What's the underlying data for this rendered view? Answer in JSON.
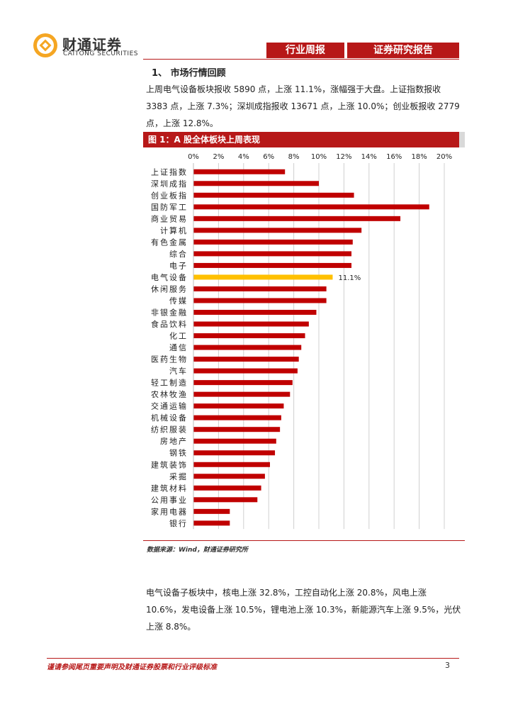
{
  "header": {
    "logo_cn": "财通证券",
    "logo_en": "CAITONG SECURITIES",
    "tab_weekly": "行业周报",
    "tab_report": "证券研究报告"
  },
  "section": {
    "title": "1、 市场行情回顾",
    "paragraph1": "上周电气设备板块报收 5890 点，上涨 11.1%，涨幅强于大盘。上证指数报收 3383 点，上涨 7.3%；深圳成指报收 13671 点，上涨 10.0%；创业板报收 2779 点，上涨 12.8%。",
    "paragraph2": "电气设备子板块中，核电上涨 32.8%，工控自动化上涨 20.8%，风电上涨 10.6%，发电设备上涨 10.5%，锂电池上涨 10.3%，新能源汽车上涨 9.5%，光伏上涨 8.8%。"
  },
  "figure": {
    "title": "图 1：A 股全体板块上周表现",
    "source": "数据来源：Wind，财通证券研究所"
  },
  "chart_data": {
    "type": "bar",
    "orientation": "horizontal",
    "title": "A 股全体板块上周表现",
    "xlim": [
      0,
      20
    ],
    "ticks": [
      "0%",
      "2%",
      "4%",
      "6%",
      "8%",
      "10%",
      "12%",
      "14%",
      "16%",
      "18%",
      "20%"
    ],
    "tick_values": [
      0,
      2,
      4,
      6,
      8,
      10,
      12,
      14,
      16,
      18,
      20
    ],
    "categories": [
      "上证指数",
      "深圳成指",
      "创业板指",
      "国防军工",
      "商业贸易",
      "计算机",
      "有色金属",
      "综合",
      "电子",
      "电气设备",
      "休闲服务",
      "传媒",
      "非银金融",
      "食品饮料",
      "化工",
      "通信",
      "医药生物",
      "汽车",
      "轻工制造",
      "农林牧渔",
      "交通运输",
      "机械设备",
      "纺织服装",
      "房地产",
      "钢铁",
      "建筑装饰",
      "采掘",
      "建筑材料",
      "公用事业",
      "家用电器",
      "银行"
    ],
    "values": [
      7.3,
      10.0,
      12.8,
      18.8,
      16.5,
      13.4,
      12.7,
      12.6,
      12.6,
      11.1,
      10.6,
      10.6,
      9.8,
      9.2,
      8.9,
      8.6,
      8.4,
      8.3,
      7.9,
      7.7,
      7.2,
      7.0,
      6.9,
      6.6,
      6.5,
      6.1,
      5.7,
      5.4,
      5.1,
      2.9,
      2.9
    ],
    "highlight": "电气设备",
    "highlight_label": "11.1%",
    "bar_color": "#c00000",
    "highlight_color": "#ffc000",
    "grid": true
  },
  "footer": {
    "disclaimer": "谨请参阅尾页重要声明及财通证券股票和行业评级标准",
    "page": "3"
  }
}
